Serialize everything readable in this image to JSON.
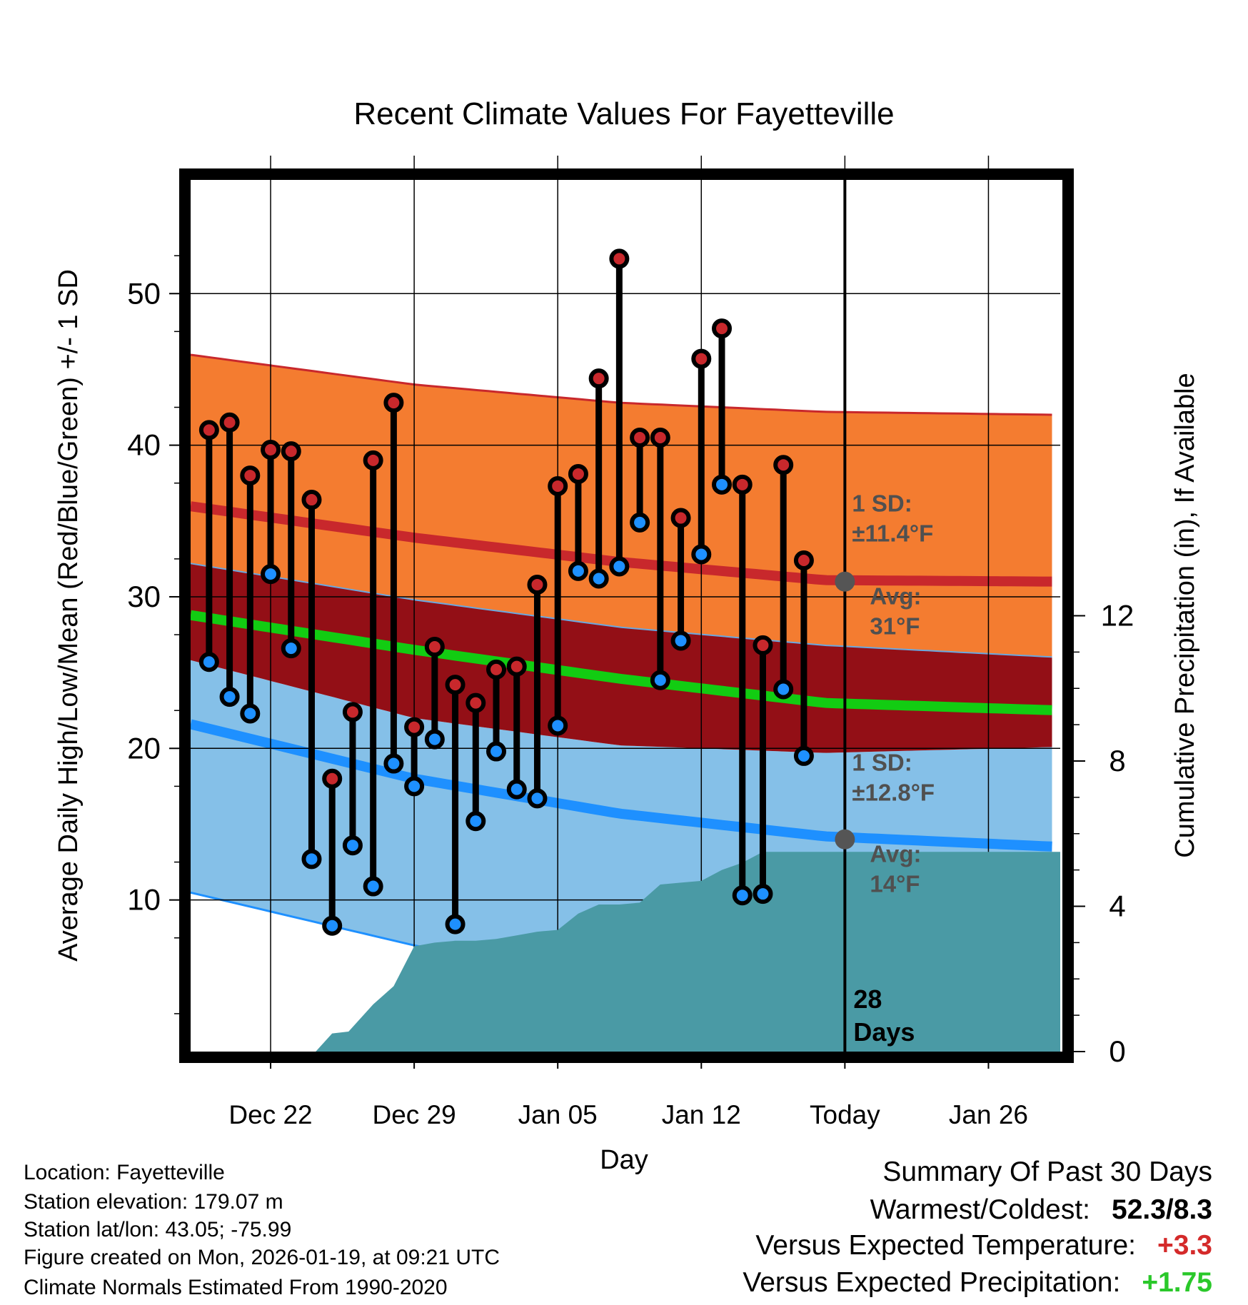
{
  "chart_data": {
    "type": "line",
    "title": "Recent Climate Values For Fayetteville",
    "xlabel": "Day",
    "ylabel": "Average Daily High/Low/Mean (Red/Blue/Green) +/- 1 SD",
    "y2label": "Cumulative Precipitation (in), If Available",
    "x_tick_labels": [
      "Dec 22",
      "Dec 29",
      "Jan 05",
      "Jan 12",
      "Today",
      "Jan 26"
    ],
    "x_tick_days": [
      3,
      10,
      17,
      24,
      31,
      38
    ],
    "xlim": [
      -0.9,
      41.5
    ],
    "ylim": [
      0,
      57.5
    ],
    "y_ticks": [
      10,
      20,
      30,
      40,
      50
    ],
    "y2lim": [
      0,
      24
    ],
    "y2_ticks": [
      0,
      4,
      8,
      12
    ],
    "today_day": 31,
    "days_label": "28\nDays",
    "normals": {
      "days": [
        0,
        10,
        20,
        30,
        41.5
      ],
      "high_mean": [
        35.8,
        33.9,
        32.3,
        31.1,
        31.0
      ],
      "high_sd_upper": [
        45.8,
        44.0,
        42.8,
        42.2,
        42.0
      ],
      "high_sd_lower": [
        32.0,
        29.8,
        28.0,
        26.8,
        26.0
      ],
      "mean": [
        28.6,
        26.5,
        24.6,
        23.0,
        22.5
      ],
      "low_mean": [
        21.3,
        18.0,
        15.7,
        14.2,
        13.5
      ],
      "low_sd_upper": [
        25.5,
        22.0,
        20.2,
        19.7,
        20.1
      ],
      "low_sd_lower": [
        10.2,
        7.0,
        4.4,
        2.0,
        1.0
      ]
    },
    "series": [
      {
        "name": "High",
        "color": "#c8282c",
        "days": [
          0,
          1,
          2,
          3,
          4,
          5,
          6,
          7,
          8,
          9,
          10,
          11,
          12,
          13,
          14,
          15,
          16,
          17,
          18,
          19,
          20,
          21,
          22,
          23,
          24,
          25,
          26,
          27,
          28,
          29,
          30
        ],
        "values": [
          41.0,
          41.5,
          38.0,
          39.7,
          39.6,
          36.4,
          18.0,
          22.4,
          39.0,
          42.8,
          21.4,
          26.7,
          24.2,
          23.0,
          25.2,
          25.4,
          30.8,
          37.3,
          38.1,
          44.4,
          52.3,
          40.5,
          40.5,
          35.2,
          45.7,
          47.7,
          37.4,
          26.8,
          38.7,
          32.4,
          null
        ]
      },
      {
        "name": "Low",
        "color": "#1e90ff",
        "days": [
          0,
          1,
          2,
          3,
          4,
          5,
          6,
          7,
          8,
          9,
          10,
          11,
          12,
          13,
          14,
          15,
          16,
          17,
          18,
          19,
          20,
          21,
          22,
          23,
          24,
          25,
          26,
          27,
          28,
          29,
          30
        ],
        "values": [
          25.7,
          23.4,
          22.3,
          31.5,
          26.6,
          12.7,
          8.3,
          13.6,
          10.9,
          19.0,
          17.5,
          20.6,
          8.4,
          15.2,
          19.8,
          17.3,
          16.7,
          21.5,
          31.7,
          31.2,
          32.0,
          34.9,
          24.5,
          27.1,
          32.8,
          37.4,
          10.3,
          10.4,
          23.9,
          19.5,
          null
        ]
      },
      {
        "name": "Cumulative Precipitation",
        "color": "#4a9aa5",
        "days": [
          5.2,
          6,
          6.8,
          8,
          9,
          10,
          11,
          12,
          13,
          14,
          15,
          16,
          17,
          18,
          19,
          20,
          21,
          22,
          23,
          24,
          25,
          26,
          27,
          28,
          29,
          30,
          31,
          41.5
        ],
        "values": [
          0,
          0.5,
          0.55,
          1.3,
          1.8,
          2.9,
          3.0,
          3.05,
          3.05,
          3.1,
          3.2,
          3.3,
          3.35,
          3.8,
          4.05,
          4.05,
          4.1,
          4.6,
          4.65,
          4.7,
          5.0,
          5.2,
          5.5,
          5.5,
          5.5,
          5.5,
          5.5,
          5.5
        ]
      }
    ],
    "annotations": {
      "high_sd": "1 SD:\n±11.4°F",
      "high_avg": "Avg:\n31°F",
      "low_sd": "1 SD:\n±12.8°F",
      "low_avg": "Avg:\n14°F",
      "high_avg_value": 31,
      "low_avg_value": 14
    }
  },
  "info": {
    "location": "Location: Fayetteville",
    "elevation": "Station elevation: 179.07 m",
    "latlon": "Station lat/lon: 43.05; -75.99",
    "created": "Figure created on Mon, 2026-01-19, at 09:21 UTC",
    "normals": "Climate Normals Estimated From 1990-2020"
  },
  "summary": {
    "title": "Summary Of Past 30 Days",
    "warm_cold_label": "Warmest/Coldest:",
    "warm_cold_value": "52.3/8.3",
    "temp_label": "Versus Expected Temperature:",
    "temp_value": "+3.3",
    "temp_color": "#d42a2a",
    "precip_label": "Versus Expected Precipitation:",
    "precip_value": "+1.75",
    "precip_color": "#2ac82a"
  },
  "colors": {
    "high_band": "#f47c30",
    "high_line": "#c8282c",
    "mid_band": "#930f16",
    "mean_line": "#12cc12",
    "low_band": "#85c0e8",
    "low_line": "#1e90ff",
    "precip": "#4a9aa5"
  }
}
